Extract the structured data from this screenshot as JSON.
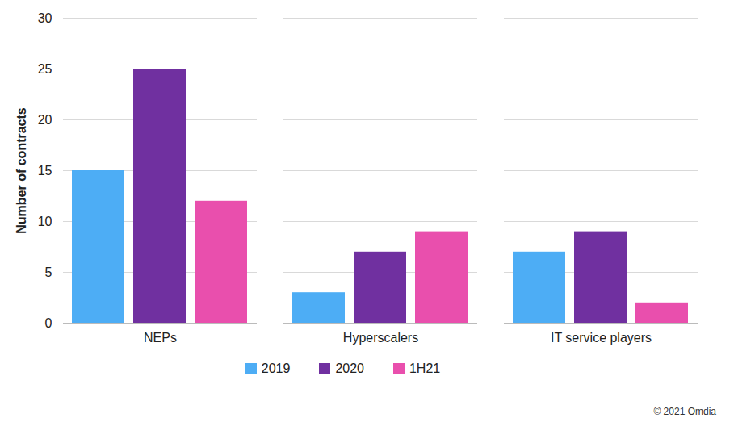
{
  "chart_data": {
    "type": "bar",
    "categories": [
      "NEPs",
      "Hyperscalers",
      "IT service players"
    ],
    "series": [
      {
        "name": "2019",
        "color": "#4dadf5",
        "values": [
          15,
          3,
          7
        ]
      },
      {
        "name": "2020",
        "color": "#7030a0",
        "values": [
          25,
          7,
          9
        ]
      },
      {
        "name": "1H21",
        "color": "#e94fad",
        "values": [
          12,
          9,
          2
        ]
      }
    ],
    "y_label": "Number of contracts",
    "ylim": [
      0,
      30
    ],
    "yticks": [
      0,
      5,
      10,
      15,
      20,
      25,
      30
    ],
    "grid": true,
    "legend": "bottom",
    "annotation": "© 2021 Omdia"
  }
}
